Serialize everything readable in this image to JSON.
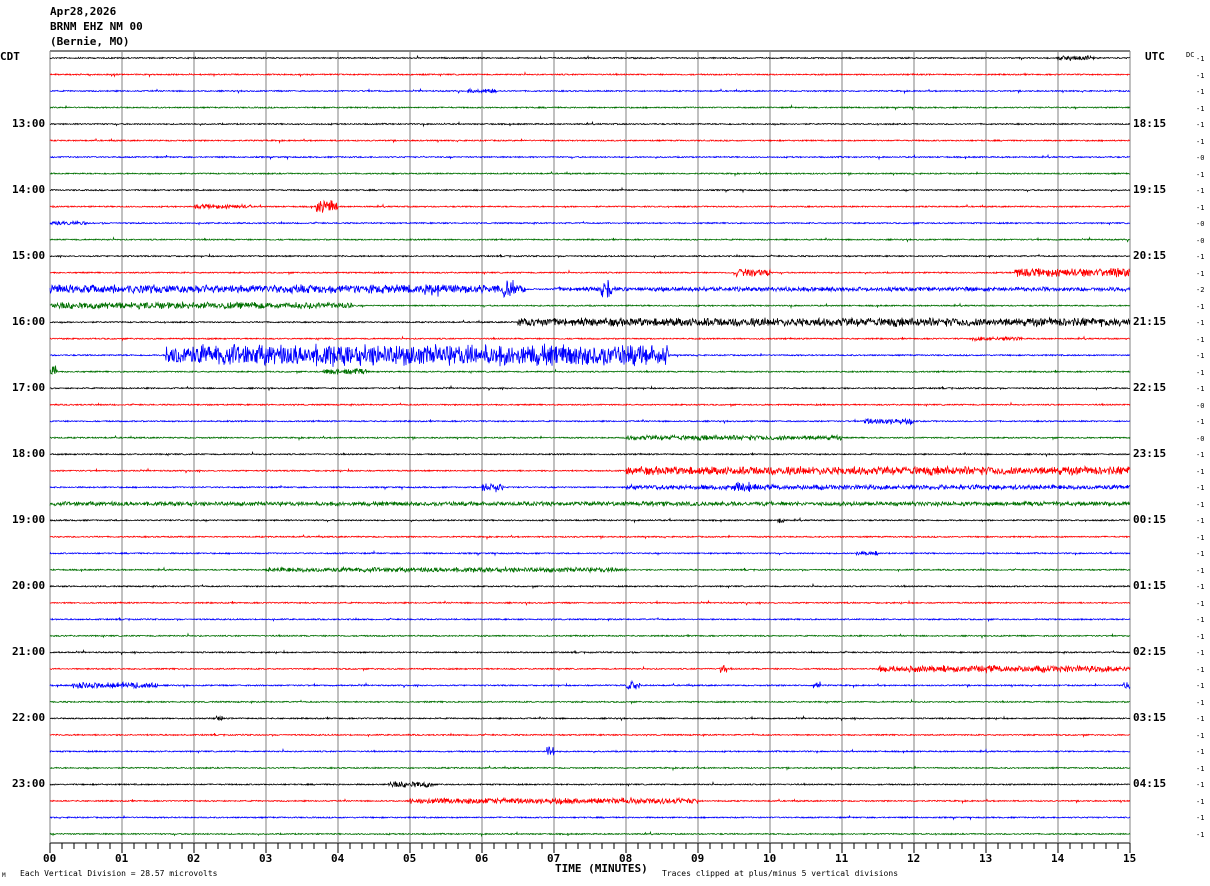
{
  "header": {
    "date": "Apr28,2026",
    "station": "BRNM EHZ NM 00",
    "location": "(Bernie, MO)"
  },
  "left_axis_label": "CDT",
  "right_axis_label": "UTC",
  "dc_label": "DC",
  "footer": {
    "scale": "Each Vertical Division =   28.57 microvolts",
    "xlabel": "TIME (MINUTES)",
    "clip_note": "Traces clipped at plus/minus 5 vertical divisions",
    "corner_mark": "M"
  },
  "chart_data": {
    "type": "line",
    "title": "BRNM EHZ NM 00",
    "xlabel": "TIME (MINUTES)",
    "xlim": [
      0,
      15
    ],
    "x_ticks": [
      "00",
      "01",
      "02",
      "03",
      "04",
      "05",
      "06",
      "07",
      "08",
      "09",
      "10",
      "11",
      "12",
      "13",
      "14",
      "15"
    ],
    "trace_count": 48,
    "minutes_per_trace": 15,
    "trace_colors": [
      "#000000",
      "#ff0000",
      "#0000ff",
      "#007000"
    ],
    "grid_color": "#808080",
    "left_time_labels": [
      {
        "trace": 4,
        "label": "13:00"
      },
      {
        "trace": 8,
        "label": "14:00"
      },
      {
        "trace": 12,
        "label": "15:00"
      },
      {
        "trace": 16,
        "label": "16:00"
      },
      {
        "trace": 20,
        "label": "17:00"
      },
      {
        "trace": 24,
        "label": "18:00"
      },
      {
        "trace": 28,
        "label": "19:00"
      },
      {
        "trace": 32,
        "label": "20:00"
      },
      {
        "trace": 36,
        "label": "21:00"
      },
      {
        "trace": 40,
        "label": "22:00"
      },
      {
        "trace": 44,
        "label": "23:00"
      }
    ],
    "right_time_labels": [
      {
        "trace": 4,
        "label": "18:15"
      },
      {
        "trace": 8,
        "label": "19:15"
      },
      {
        "trace": 12,
        "label": "20:15"
      },
      {
        "trace": 16,
        "label": "21:15"
      },
      {
        "trace": 20,
        "label": "22:15"
      },
      {
        "trace": 24,
        "label": "23:15"
      },
      {
        "trace": 28,
        "label": "00:15"
      },
      {
        "trace": 32,
        "label": "01:15"
      },
      {
        "trace": 36,
        "label": "02:15"
      },
      {
        "trace": 40,
        "label": "03:15"
      },
      {
        "trace": 44,
        "label": "04:15"
      }
    ],
    "dc_offsets": [
      "-1",
      "-1",
      "-1",
      "-1",
      "-1",
      "-1",
      "-0",
      "-1",
      "-1",
      "-1",
      "-0",
      "-0",
      "-1",
      "-1",
      "-2",
      "-1",
      "-1",
      "-1",
      "-1",
      "-1",
      "-1",
      "-0",
      "-1",
      "-0",
      "-1",
      "-1",
      "-1",
      "-1",
      "-1",
      "-1",
      "-1",
      "-1",
      "-1",
      "-1",
      "-1",
      "-1",
      "-1",
      "-1",
      "-1",
      "-1",
      "-1",
      "-1",
      "-1",
      "-1",
      "-1",
      "-1",
      "-1",
      "-1"
    ],
    "clip_divisions": 5,
    "events": [
      {
        "trace": 0,
        "start": 14.0,
        "end": 14.5,
        "amp": 0.8
      },
      {
        "trace": 2,
        "start": 5.8,
        "end": 6.2,
        "amp": 0.8
      },
      {
        "trace": 9,
        "start": 2.0,
        "end": 2.8,
        "amp": 0.7
      },
      {
        "trace": 9,
        "start": 3.7,
        "end": 4.0,
        "amp": 2.0
      },
      {
        "trace": 10,
        "start": 0.0,
        "end": 0.5,
        "amp": 0.6
      },
      {
        "trace": 13,
        "start": 9.5,
        "end": 10.0,
        "amp": 1.3
      },
      {
        "trace": 13,
        "start": 13.4,
        "end": 15.0,
        "amp": 1.4
      },
      {
        "trace": 14,
        "start": 0.0,
        "end": 6.6,
        "amp": 1.4
      },
      {
        "trace": 14,
        "start": 5.2,
        "end": 5.4,
        "amp": 2.5
      },
      {
        "trace": 14,
        "start": 6.3,
        "end": 6.45,
        "amp": 3.5
      },
      {
        "trace": 14,
        "start": 7.65,
        "end": 7.8,
        "amp": 2.8
      },
      {
        "trace": 14,
        "start": 7.0,
        "end": 15.0,
        "amp": 0.7
      },
      {
        "trace": 15,
        "start": 0.0,
        "end": 4.2,
        "amp": 1.1
      },
      {
        "trace": 16,
        "start": 6.5,
        "end": 15.0,
        "amp": 1.4
      },
      {
        "trace": 17,
        "start": 12.8,
        "end": 13.5,
        "amp": 0.7
      },
      {
        "trace": 18,
        "start": 1.6,
        "end": 8.6,
        "amp": 3.5
      },
      {
        "trace": 19,
        "start": 0.0,
        "end": 0.1,
        "amp": 2.0
      },
      {
        "trace": 19,
        "start": 3.8,
        "end": 4.4,
        "amp": 1.0
      },
      {
        "trace": 22,
        "start": 11.3,
        "end": 12.0,
        "amp": 1.0
      },
      {
        "trace": 23,
        "start": 8.0,
        "end": 11.0,
        "amp": 0.8
      },
      {
        "trace": 25,
        "start": 8.0,
        "end": 15.0,
        "amp": 1.4
      },
      {
        "trace": 26,
        "start": 6.0,
        "end": 6.3,
        "amp": 1.5
      },
      {
        "trace": 26,
        "start": 9.5,
        "end": 9.8,
        "amp": 1.8
      },
      {
        "trace": 26,
        "start": 8.0,
        "end": 15.0,
        "amp": 0.8
      },
      {
        "trace": 27,
        "start": 0.0,
        "end": 15.0,
        "amp": 0.7
      },
      {
        "trace": 28,
        "start": 10.1,
        "end": 10.2,
        "amp": 1.2
      },
      {
        "trace": 30,
        "start": 11.2,
        "end": 11.5,
        "amp": 0.7
      },
      {
        "trace": 31,
        "start": 3.0,
        "end": 8.0,
        "amp": 0.8
      },
      {
        "trace": 37,
        "start": 9.3,
        "end": 9.4,
        "amp": 1.5
      },
      {
        "trace": 37,
        "start": 11.5,
        "end": 15.0,
        "amp": 1.1
      },
      {
        "trace": 38,
        "start": 0.3,
        "end": 1.5,
        "amp": 1.0
      },
      {
        "trace": 38,
        "start": 8.0,
        "end": 8.2,
        "amp": 1.5
      },
      {
        "trace": 38,
        "start": 10.6,
        "end": 10.7,
        "amp": 1.2
      },
      {
        "trace": 38,
        "start": 14.9,
        "end": 15.0,
        "amp": 1.0
      },
      {
        "trace": 40,
        "start": 2.3,
        "end": 2.4,
        "amp": 0.8
      },
      {
        "trace": 42,
        "start": 6.9,
        "end": 7.0,
        "amp": 2.3
      },
      {
        "trace": 44,
        "start": 4.7,
        "end": 5.3,
        "amp": 1.0
      },
      {
        "trace": 45,
        "start": 5.0,
        "end": 9.0,
        "amp": 1.0
      }
    ]
  }
}
